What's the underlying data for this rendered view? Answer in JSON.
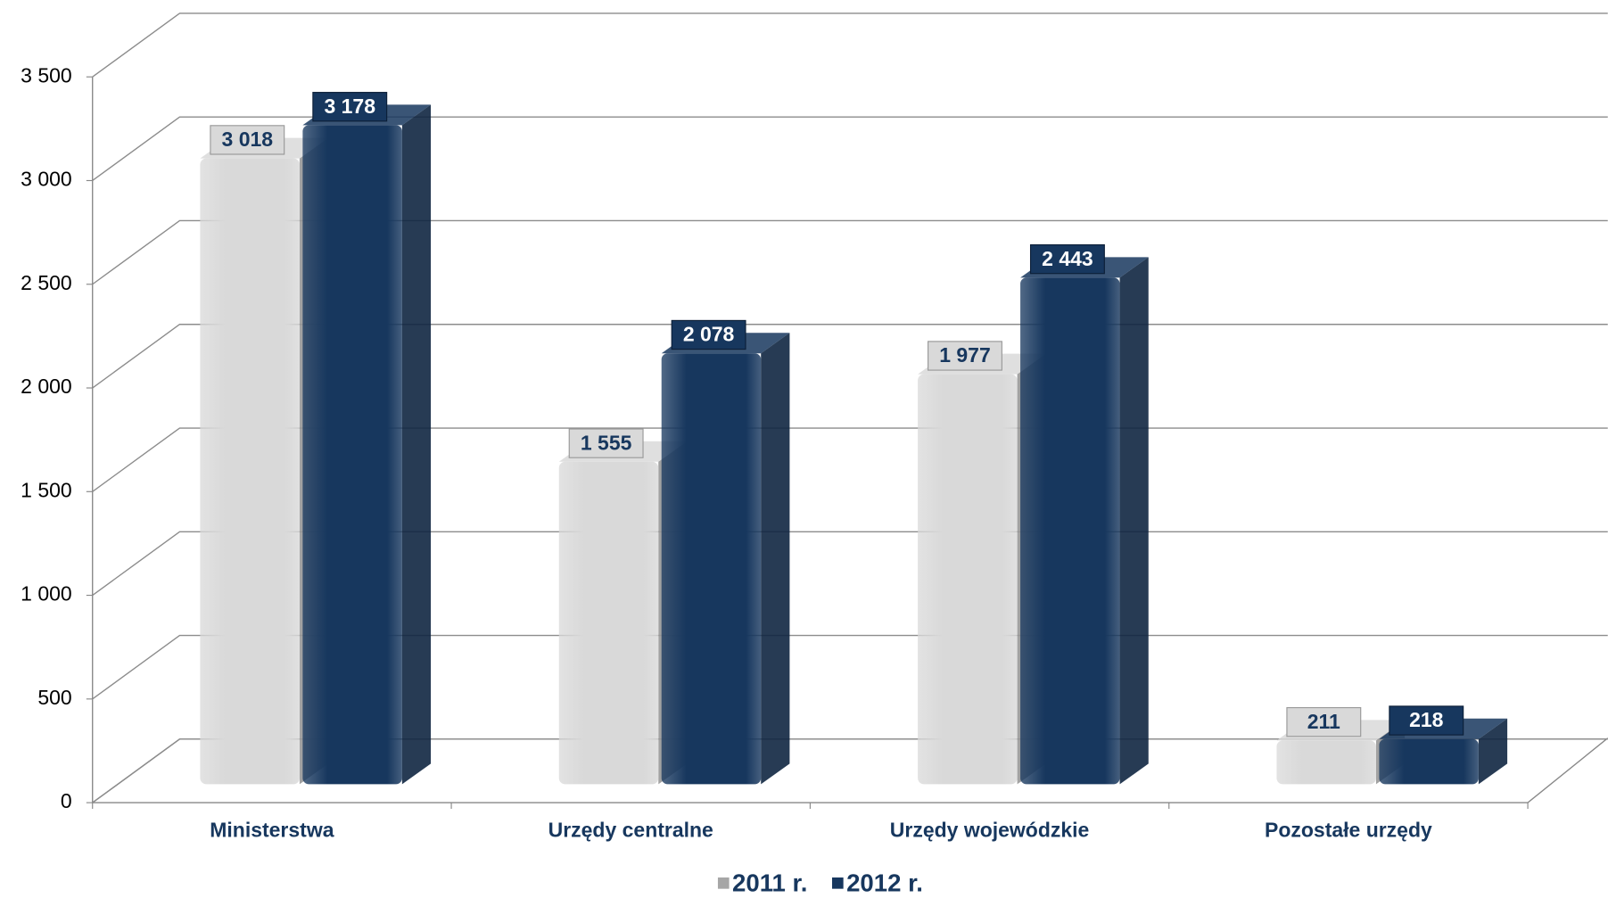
{
  "chart_data": {
    "type": "bar3d",
    "categories": [
      "Ministerstwa",
      "Urzędy centralne",
      "Urzędy wojewódzkie",
      "Pozostałe urzędy"
    ],
    "series": [
      {
        "name": "2011 r.",
        "color": "#d9d9d9",
        "values": [
          3018,
          1555,
          1977,
          211
        ],
        "value_labels": [
          "3 018",
          "1 555",
          "1 977",
          "211"
        ]
      },
      {
        "name": "2012 r.",
        "color": "#17375e",
        "values": [
          3178,
          2078,
          2443,
          218
        ],
        "value_labels": [
          "3 178",
          "2 078",
          "2 443",
          "218"
        ]
      }
    ],
    "ylim": [
      0,
      3500
    ],
    "yticks": [
      {
        "value": 0,
        "label": "0"
      },
      {
        "value": 500,
        "label": "500"
      },
      {
        "value": 1000,
        "label": "1 000"
      },
      {
        "value": 1500,
        "label": "1 500"
      },
      {
        "value": 2000,
        "label": "2 000"
      },
      {
        "value": 2500,
        "label": "2 500"
      },
      {
        "value": 3000,
        "label": "3 000"
      },
      {
        "value": 3500,
        "label": "3 500"
      }
    ],
    "grid": true
  }
}
